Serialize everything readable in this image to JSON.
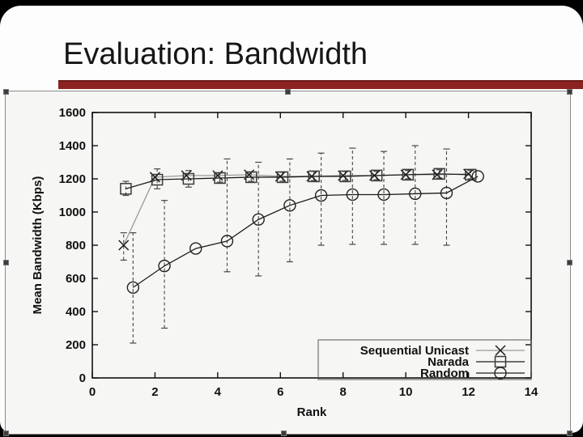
{
  "slide": {
    "title": "Evaluation: Bandwidth"
  },
  "accent_color": "#8b2320",
  "chart_data": {
    "type": "line",
    "title": "",
    "xlabel": "Rank",
    "ylabel": "Mean Bandwidth (Kbps)",
    "xlim": [
      0,
      14
    ],
    "ylim": [
      0,
      1600
    ],
    "xticks": [
      0,
      2,
      4,
      6,
      8,
      10,
      12,
      14
    ],
    "yticks": [
      0,
      200,
      400,
      600,
      800,
      1000,
      1200,
      1400,
      1600
    ],
    "grid": false,
    "legend_position": "bottom-right",
    "series": [
      {
        "name": "Sequential Unicast",
        "marker": "x",
        "line_color": "#9a9a9a",
        "marker_color": "#1a1a1a",
        "x_offset": 0.0,
        "points": [
          {
            "x": 1,
            "y": 800,
            "err": [
              710,
              875
            ]
          },
          {
            "x": 2,
            "y": 1210,
            "err": null
          },
          {
            "x": 3,
            "y": 1220,
            "err": null
          },
          {
            "x": 4,
            "y": 1220,
            "err": null
          },
          {
            "x": 5,
            "y": 1225,
            "err": null
          },
          {
            "x": 6,
            "y": 1215,
            "err": null
          },
          {
            "x": 7,
            "y": 1215,
            "err": null
          },
          {
            "x": 8,
            "y": 1220,
            "err": null
          },
          {
            "x": 9,
            "y": 1220,
            "err": null
          },
          {
            "x": 10,
            "y": 1225,
            "err": null
          },
          {
            "x": 11,
            "y": 1225,
            "err": null
          },
          {
            "x": 12,
            "y": 1230,
            "err": null
          }
        ]
      },
      {
        "name": "Narada",
        "marker": "square",
        "line_color": "#1c1c1c",
        "marker_color": "#3a3a3a",
        "x_offset": 0.07,
        "points": [
          {
            "x": 1,
            "y": 1140,
            "err": [
              1100,
              1185
            ]
          },
          {
            "x": 2,
            "y": 1195,
            "err": [
              1140,
              1260
            ]
          },
          {
            "x": 3,
            "y": 1200,
            "err": [
              1150,
              1250
            ]
          },
          {
            "x": 4,
            "y": 1205,
            "err": [
              1180,
              1235
            ]
          },
          {
            "x": 5,
            "y": 1210,
            "err": [
              1185,
              1240
            ]
          },
          {
            "x": 6,
            "y": 1210,
            "err": [
              1185,
              1240
            ]
          },
          {
            "x": 7,
            "y": 1215,
            "err": [
              1190,
              1245
            ]
          },
          {
            "x": 8,
            "y": 1215,
            "err": [
              1190,
              1245
            ]
          },
          {
            "x": 9,
            "y": 1220,
            "err": [
              1195,
              1245
            ]
          },
          {
            "x": 10,
            "y": 1225,
            "err": [
              1200,
              1250
            ]
          },
          {
            "x": 11,
            "y": 1230,
            "err": [
              1205,
              1255
            ]
          },
          {
            "x": 12,
            "y": 1225,
            "err": [
              1200,
              1250
            ]
          }
        ]
      },
      {
        "name": "Random",
        "marker": "circle",
        "line_color": "#1c1c1c",
        "marker_color": "#222222",
        "x_offset": 0.3,
        "points": [
          {
            "x": 1,
            "y": 545,
            "err": [
              210,
              875
            ]
          },
          {
            "x": 2,
            "y": 675,
            "err": [
              300,
              1070
            ]
          },
          {
            "x": 3,
            "y": 780,
            "err": null
          },
          {
            "x": 4,
            "y": 825,
            "err": [
              640,
              1320
            ]
          },
          {
            "x": 5,
            "y": 955,
            "err": [
              615,
              1300
            ]
          },
          {
            "x": 6,
            "y": 1040,
            "err": [
              700,
              1320
            ]
          },
          {
            "x": 7,
            "y": 1100,
            "err": [
              800,
              1355
            ]
          },
          {
            "x": 8,
            "y": 1105,
            "err": [
              805,
              1385
            ]
          },
          {
            "x": 9,
            "y": 1105,
            "err": [
              805,
              1365
            ]
          },
          {
            "x": 10,
            "y": 1110,
            "err": [
              805,
              1400
            ]
          },
          {
            "x": 11,
            "y": 1115,
            "err": [
              800,
              1380
            ]
          },
          {
            "x": 12,
            "y": 1215,
            "err": null
          }
        ]
      }
    ]
  }
}
